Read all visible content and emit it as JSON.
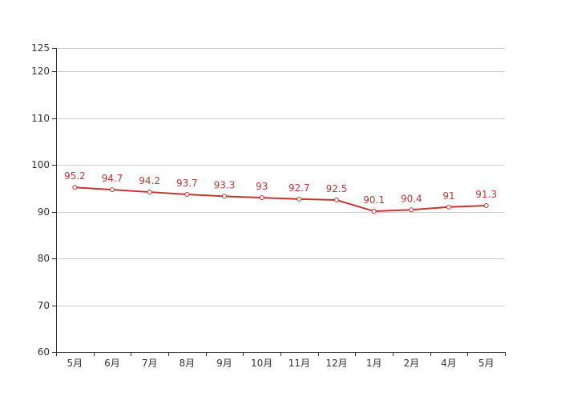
{
  "chart_data": {
    "type": "line",
    "title": "",
    "xlabel": "",
    "ylabel": "",
    "categories": [
      "5月",
      "6月",
      "7月",
      "8月",
      "9月",
      "10月",
      "11月",
      "12月",
      "1月",
      "2月",
      "4月",
      "5月"
    ],
    "series": [
      {
        "values": [
          95.2,
          94.7,
          94.2,
          93.7,
          93.3,
          93,
          92.7,
          92.5,
          90.1,
          90.4,
          91,
          91.3
        ]
      }
    ],
    "yticks": [
      60,
      70,
      80,
      90,
      100,
      110,
      120,
      125
    ],
    "ylim": [
      60,
      125
    ],
    "grid": true,
    "legend": "none",
    "data_labels": true,
    "colors": {
      "line": "#c23531",
      "label": "#c23531",
      "axis": "#333333",
      "grid": "#cccccc"
    }
  }
}
